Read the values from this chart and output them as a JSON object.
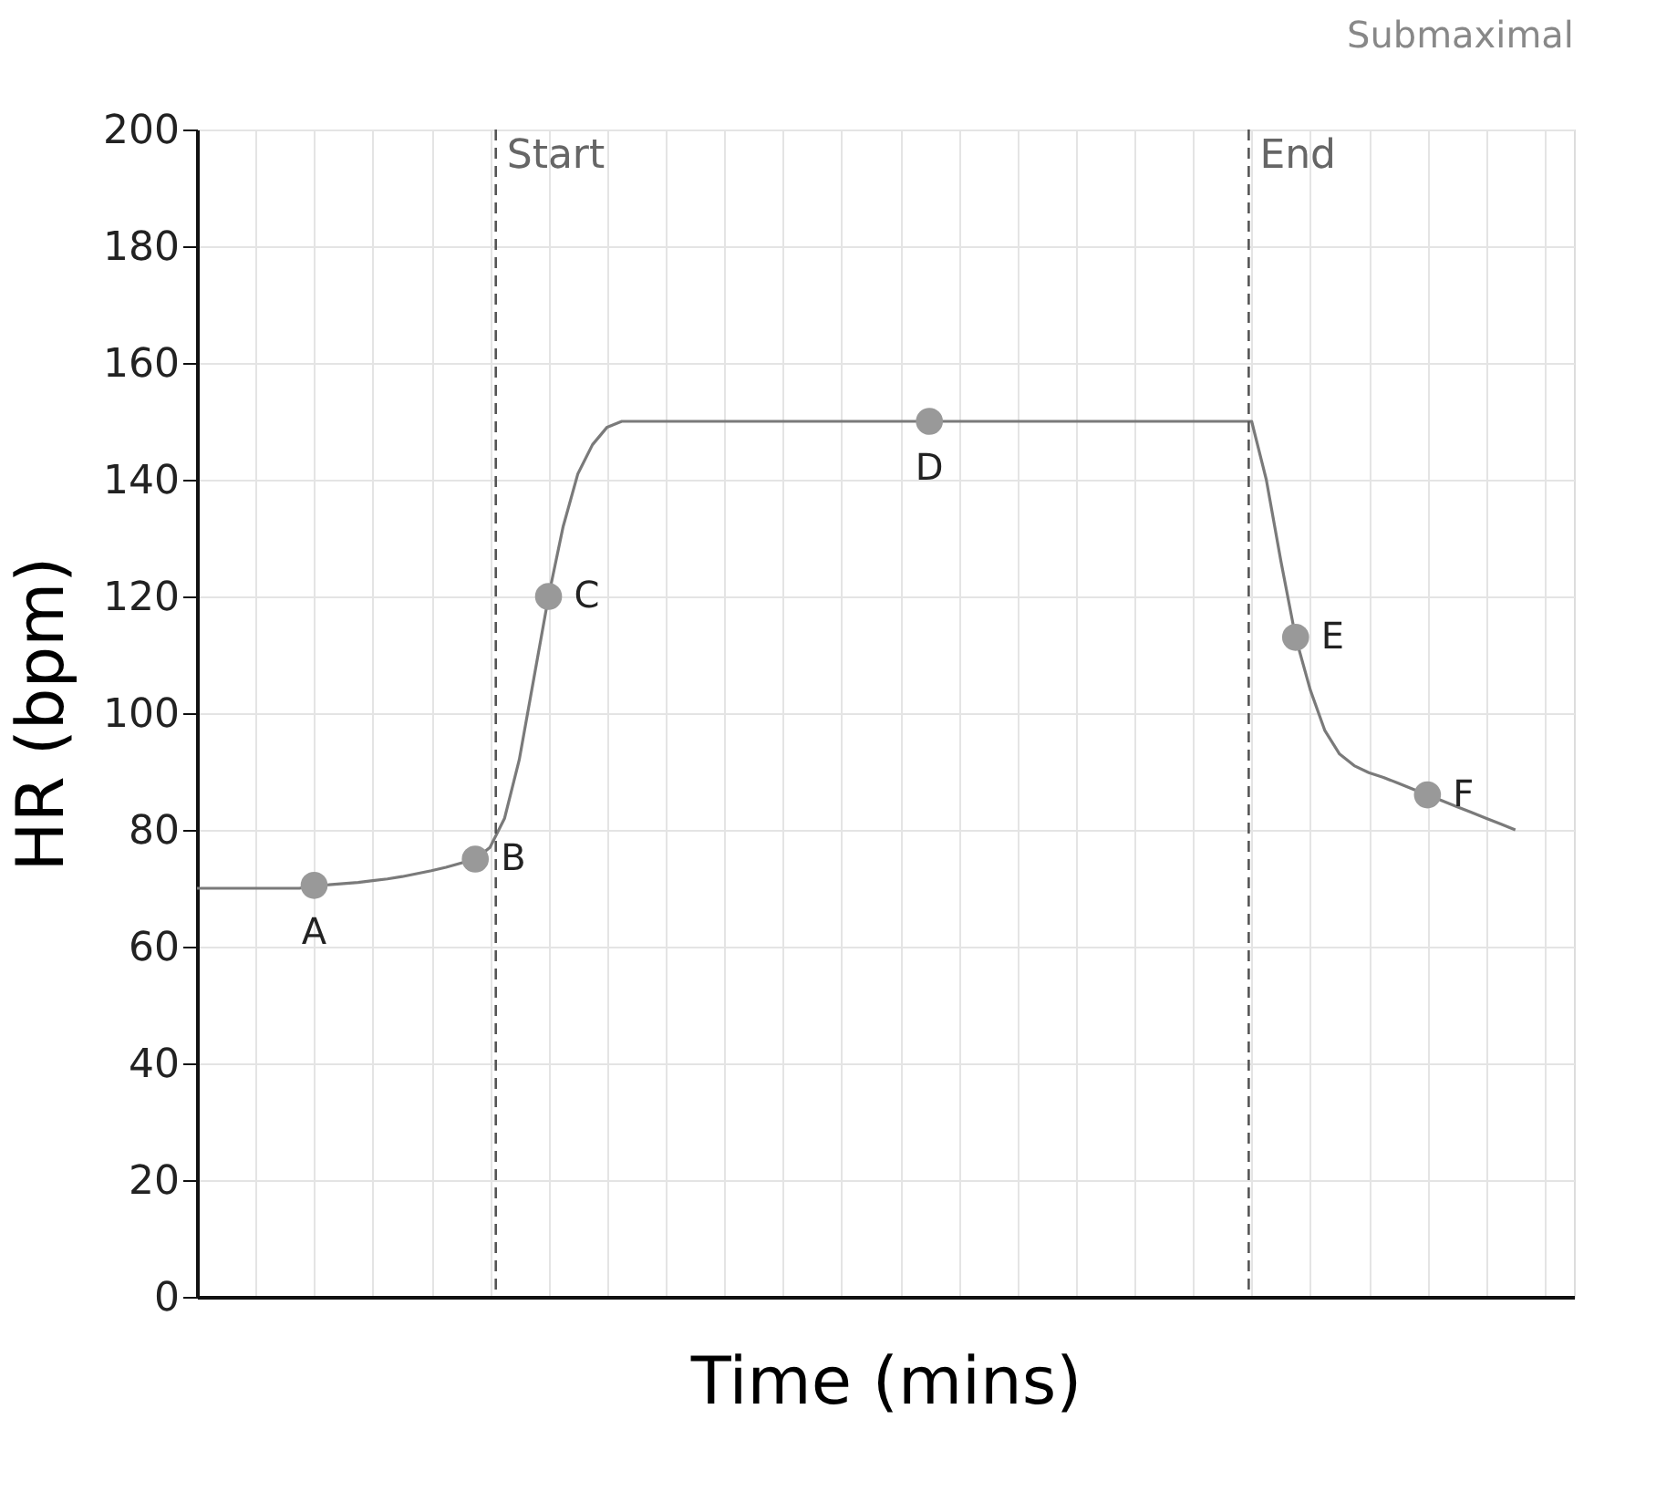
{
  "chart_data": {
    "type": "line",
    "title": "Submaximal",
    "xlabel": "Time (mins)",
    "ylabel": "HR (bpm)",
    "categories": [
      null,
      null,
      null,
      null,
      null,
      null,
      null,
      null,
      null,
      null,
      null,
      null,
      null,
      null,
      null,
      null,
      null,
      null,
      null,
      null,
      null,
      null,
      null,
      null,
      null,
      null,
      null,
      null,
      null,
      null,
      null,
      null,
      null,
      null,
      null,
      null,
      null,
      null,
      null,
      null,
      null,
      null,
      null,
      null,
      null,
      null,
      null,
      null,
      null,
      null,
      null,
      null,
      null,
      null,
      null,
      null,
      null,
      null,
      null,
      null,
      null,
      null,
      null,
      null,
      null,
      null,
      null,
      null,
      null,
      null,
      null,
      null,
      null,
      null,
      null,
      null,
      null,
      null,
      null,
      null,
      null,
      null,
      null,
      null,
      null,
      null,
      null,
      null,
      null,
      null,
      null
    ],
    "series": [
      {
        "color": "#7a7a7a",
        "marker": "none",
        "values": [
          70,
          70,
          70,
          70,
          70,
          70,
          70,
          70,
          70.5,
          70.6,
          70.8,
          71,
          71.3,
          71.6,
          72,
          72.5,
          73,
          73.6,
          74.3,
          75,
          77,
          82,
          92,
          106,
          120,
          132,
          141,
          146,
          149,
          150,
          150,
          150,
          150,
          150,
          150,
          150,
          150,
          150,
          150,
          150,
          150,
          150,
          150,
          150,
          150,
          150,
          150,
          150,
          150,
          150,
          150,
          150,
          150,
          150,
          150,
          150,
          150,
          150,
          150,
          150,
          150,
          150,
          150,
          150,
          150,
          150,
          150,
          150,
          150,
          150,
          150,
          150,
          150,
          140,
          126,
          113,
          104,
          97,
          93,
          91,
          89.8,
          89,
          88,
          87,
          86,
          85,
          84,
          83,
          82,
          81,
          80
        ],
        "value_labels": [
          null,
          null,
          null,
          null,
          null,
          null,
          null,
          null,
          "A",
          null,
          null,
          null,
          null,
          null,
          null,
          null,
          null,
          null,
          null,
          "B",
          null,
          null,
          null,
          null,
          "C",
          null,
          null,
          null,
          null,
          null,
          null,
          null,
          null,
          null,
          null,
          null,
          null,
          null,
          null,
          null,
          null,
          null,
          null,
          null,
          null,
          null,
          null,
          null,
          null,
          null,
          "D",
          null,
          null,
          null,
          null,
          null,
          null,
          null,
          null,
          null,
          null,
          null,
          null,
          null,
          null,
          null,
          null,
          null,
          null,
          null,
          null,
          null,
          null,
          null,
          null,
          "E",
          null,
          null,
          null,
          null,
          null,
          null,
          null,
          null,
          "F",
          null,
          null,
          null,
          null,
          null,
          null
        ]
      }
    ],
    "ylim": [
      0,
      200
    ],
    "yticks": [
      0,
      20,
      40,
      60,
      80,
      100,
      120,
      140,
      160,
      180,
      200
    ],
    "annotations": [
      "Start",
      "End"
    ],
    "grid": true,
    "tick_labels": "y",
    "legend": false
  }
}
